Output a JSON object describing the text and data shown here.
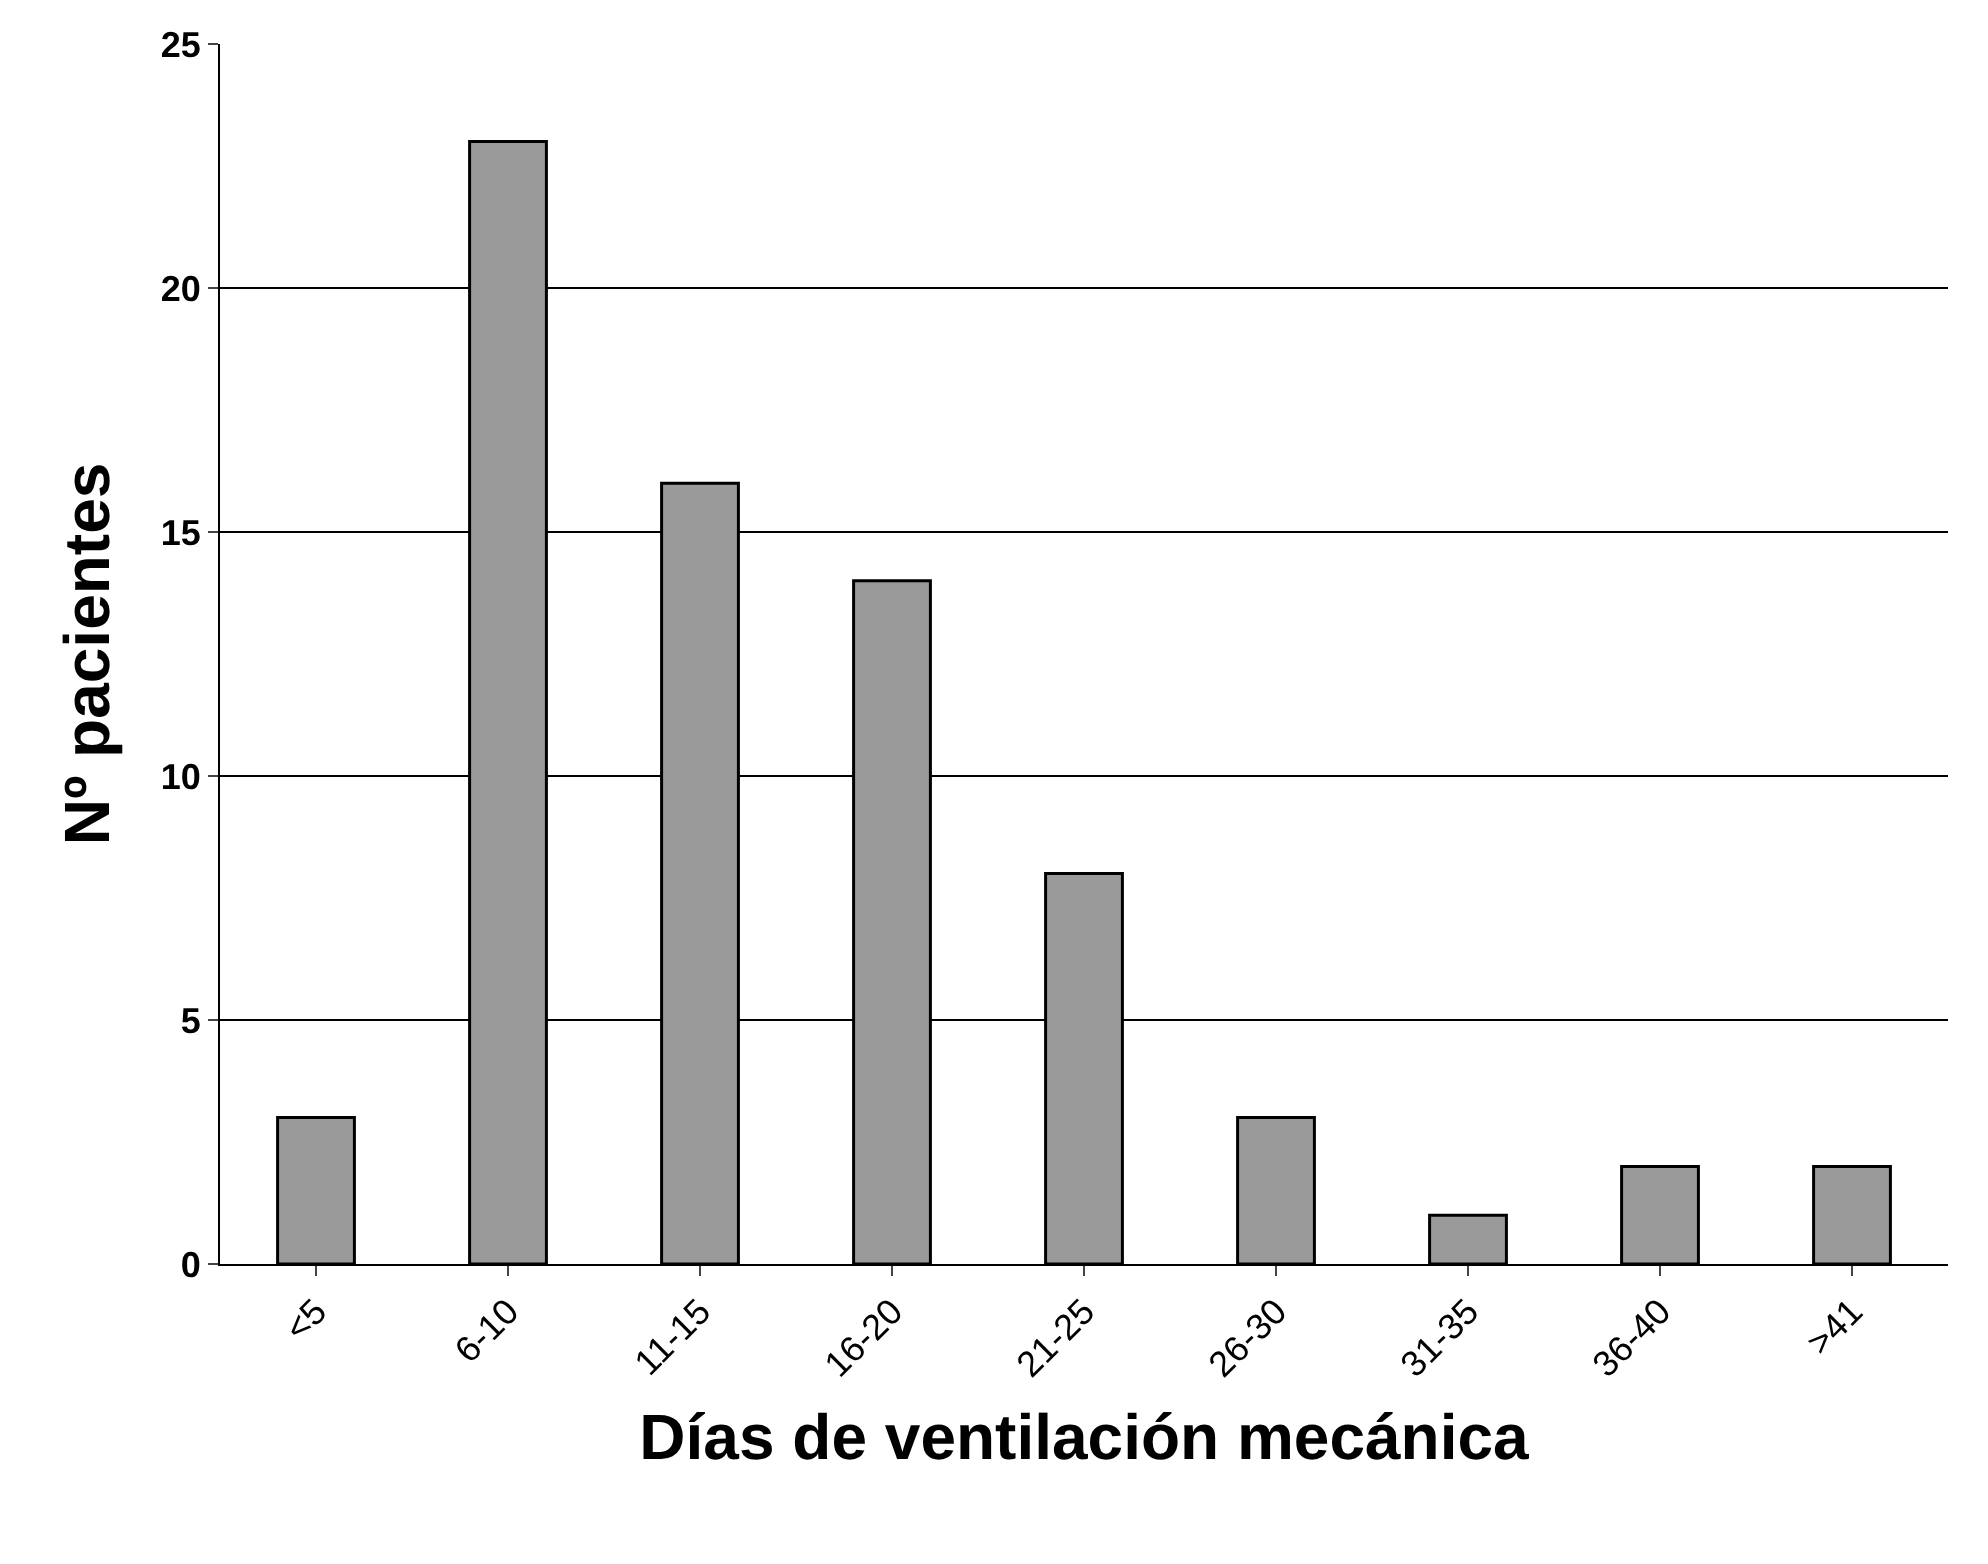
{
  "chart_data": {
    "type": "bar",
    "xlabel": "Días de ventilación mecánica",
    "ylabel": "Nº pacientes",
    "categories": [
      "<5",
      "6-10",
      "11-15",
      "16-20",
      "21-25",
      "26-30",
      "31-35",
      "36-40",
      ">41"
    ],
    "values": [
      3,
      23,
      16,
      14,
      8,
      3,
      1,
      2,
      2
    ],
    "color": "#9a9a9a",
    "ylim": [
      0,
      25
    ],
    "yticks": [
      0,
      5,
      10,
      15,
      20,
      25
    ],
    "grid": "y"
  }
}
